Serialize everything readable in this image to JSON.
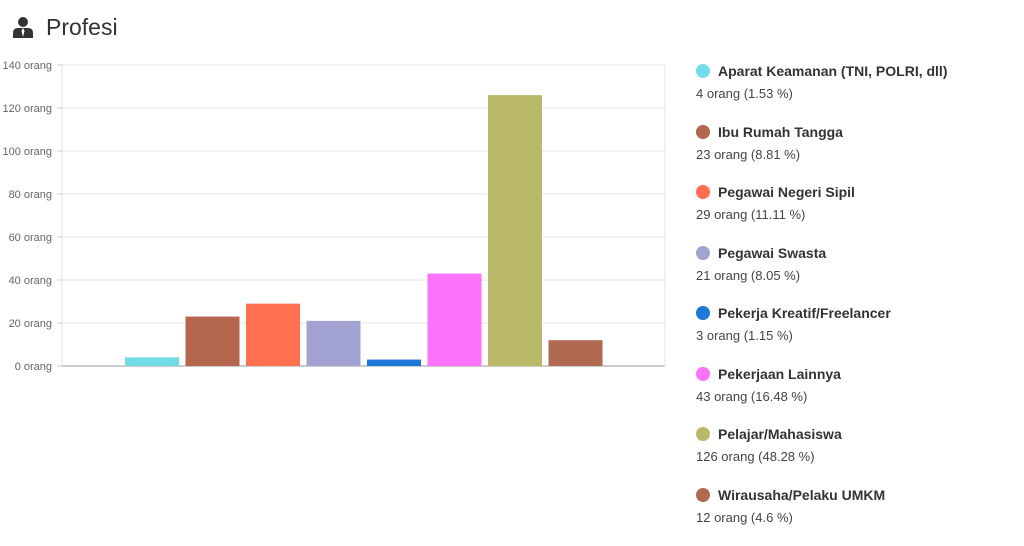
{
  "header": {
    "title": "Profesi",
    "icon": "user-tie-icon"
  },
  "chart_data": {
    "type": "bar",
    "title": "Profesi",
    "xlabel": "",
    "ylabel": "",
    "ylim": [
      0,
      140
    ],
    "yticks": [
      0,
      20,
      40,
      60,
      80,
      100,
      120,
      140
    ],
    "ytick_labels": [
      "0 orang",
      "20 orang",
      "40 orang",
      "60 orang",
      "80 orang",
      "100 orang",
      "120 orang",
      "140 orang"
    ],
    "grid": true,
    "legend_position": "right",
    "categories": [
      "Aparat Keamanan (TNI, POLRI, dll)",
      "Ibu Rumah Tangga",
      "Pegawai Negeri Sipil",
      "Pegawai Swasta",
      "Pekerja Kreatif/Freelancer",
      "Pekerjaan Lainnya",
      "Pelajar/Mahasiswa",
      "Wirausaha/Pelaku UMKM"
    ],
    "values": [
      4,
      23,
      29,
      21,
      3,
      43,
      126,
      12
    ],
    "colors": [
      "#72dde6",
      "#b5664f",
      "#ff7051",
      "#a3a3d3",
      "#1f78d6",
      "#fb72fb",
      "#bab96a",
      "#b06a52"
    ],
    "legend_details": [
      "4 orang (1.53 %)",
      "23 orang (8.81 %)",
      "29 orang (11.11 %)",
      "21 orang (8.05 %)",
      "3 orang (1.15 %)",
      "43 orang (16.48 %)",
      "126 orang (48.28 %)",
      "12 orang (4.6 %)"
    ]
  }
}
